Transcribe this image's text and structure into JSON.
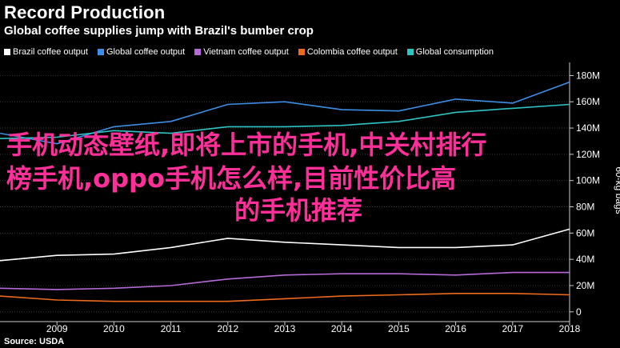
{
  "header": {
    "title": "Record Production",
    "subtitle": "Global coffee supplies jump with Brazil's bumber crop"
  },
  "footer": {
    "source": "Source: USDA"
  },
  "overlay": {
    "lines": [
      "手机动态壁纸,即将上市的手机,中关村排行",
      "榜手机,oppo手机怎么样,目前性价比高",
      "的手机推荐"
    ]
  },
  "chart_data": {
    "type": "line",
    "title": "Record Production",
    "subtitle": "Global coffee supplies jump with Brazil's bumber crop",
    "xlabel": "",
    "ylabel": "60-kg bags",
    "x": [
      2008,
      2009,
      2010,
      2011,
      2012,
      2013,
      2014,
      2015,
      2016,
      2017,
      2018
    ],
    "xlim": [
      2008,
      2018
    ],
    "ylim": [
      -5,
      190
    ],
    "y_ticks": [
      0,
      20,
      40,
      60,
      80,
      100,
      120,
      140,
      160,
      180
    ],
    "y_tick_labels": [
      "0",
      "20M",
      "40M",
      "60M",
      "80M",
      "100M",
      "120M",
      "140M",
      "160M",
      "180M"
    ],
    "x_tick_labels": [
      "2009",
      "2010",
      "2011",
      "2012",
      "2013",
      "2014",
      "2015",
      "2016",
      "2017",
      "2018"
    ],
    "x_tick_values": [
      2009,
      2010,
      2011,
      2012,
      2013,
      2014,
      2015,
      2016,
      2017,
      2018
    ],
    "legend_position": "top-left",
    "grid": true,
    "series": [
      {
        "name": "Brazil coffee output",
        "color": "#ffffff",
        "values": [
          39,
          43,
          44,
          49,
          56,
          53,
          51,
          49,
          49,
          51,
          63
        ]
      },
      {
        "name": "Global coffee output",
        "color": "#3d8ee6",
        "values": [
          136,
          128,
          141,
          145,
          158,
          160,
          154,
          153,
          162,
          159,
          175
        ]
      },
      {
        "name": "Vietnam coffee output",
        "color": "#b66ad8",
        "values": [
          18,
          17,
          18,
          20,
          25,
          28,
          29,
          29,
          28,
          30,
          30
        ]
      },
      {
        "name": "Colombia coffee output",
        "color": "#ee6a1c",
        "values": [
          12,
          9,
          8,
          8,
          8,
          10,
          12,
          13,
          14,
          14,
          13
        ]
      },
      {
        "name": "Global consumption",
        "color": "#2ec4c4",
        "values": [
          132,
          133,
          138,
          136,
          141,
          141,
          142,
          145,
          152,
          155,
          158
        ]
      }
    ]
  }
}
